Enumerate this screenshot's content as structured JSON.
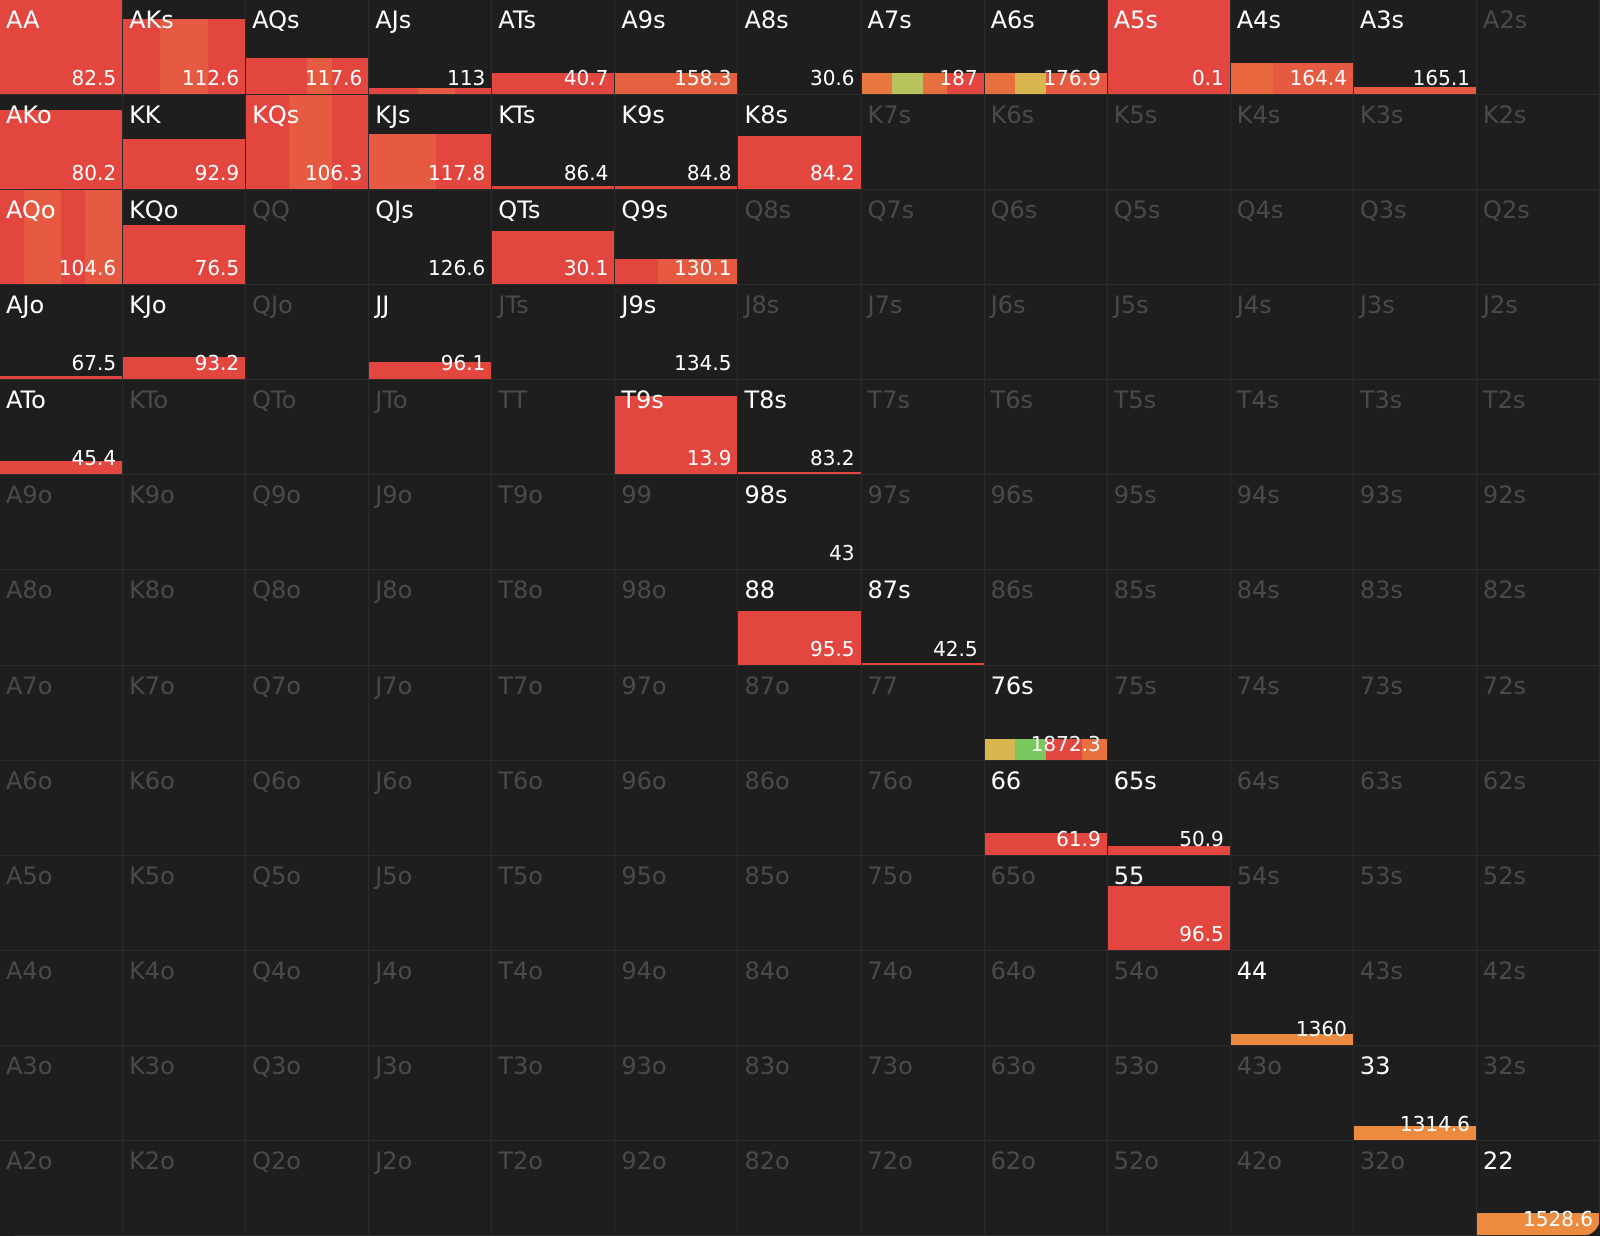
{
  "grid": {
    "rows": [
      [
        {
          "label": "AA",
          "value": 82.5,
          "height": 100,
          "segments": [
            {
              "color": "#e2463f",
              "share": 100
            }
          ]
        },
        {
          "label": "AKs",
          "value": 112.6,
          "height": 80,
          "segments": [
            {
              "color": "#e2463f",
              "share": 30
            },
            {
              "color": "#e55a40",
              "share": 40
            },
            {
              "color": "#e2463f",
              "share": 30
            }
          ]
        },
        {
          "label": "AQs",
          "value": 117.6,
          "height": 38,
          "segments": [
            {
              "color": "#e2463f",
              "share": 50
            },
            {
              "color": "#e55a40",
              "share": 20
            },
            {
              "color": "#e2463f",
              "share": 30
            }
          ]
        },
        {
          "label": "AJs",
          "value": 113,
          "height": 6,
          "segments": [
            {
              "color": "#e2463f",
              "share": 40
            },
            {
              "color": "#e55a40",
              "share": 30
            },
            {
              "color": "#e2463f",
              "share": 30
            }
          ]
        },
        {
          "label": "ATs",
          "value": 40.7,
          "height": 22,
          "segments": [
            {
              "color": "#e2463f",
              "share": 100
            }
          ]
        },
        {
          "label": "A9s",
          "value": 158.3,
          "height": 22,
          "segments": [
            {
              "color": "#e5603f",
              "share": 100
            }
          ]
        },
        {
          "label": "A8s",
          "value": 30.6,
          "height": 0,
          "segments": []
        },
        {
          "label": "A7s",
          "value": 187,
          "height": 22,
          "segments": [
            {
              "color": "#e8783f",
              "share": 25
            },
            {
              "color": "#b9c35e",
              "share": 25
            },
            {
              "color": "#e8703f",
              "share": 20
            },
            {
              "color": "#e2463f",
              "share": 30
            }
          ]
        },
        {
          "label": "A6s",
          "value": 176.9,
          "height": 22,
          "segments": [
            {
              "color": "#e8703f",
              "share": 25
            },
            {
              "color": "#d9b54f",
              "share": 25
            },
            {
              "color": "#e55a40",
              "share": 50
            }
          ]
        },
        {
          "label": "A5s",
          "value": 0.1,
          "height": 100,
          "segments": [
            {
              "color": "#e2463f",
              "share": 100
            }
          ]
        },
        {
          "label": "A4s",
          "value": 164.4,
          "height": 33,
          "segments": [
            {
              "color": "#e8673f",
              "share": 35
            },
            {
              "color": "#e55a40",
              "share": 65
            }
          ]
        },
        {
          "label": "A3s",
          "value": 165.1,
          "height": 8,
          "segments": [
            {
              "color": "#e55a40",
              "share": 100
            }
          ]
        },
        {
          "label": "A2s"
        }
      ],
      [
        {
          "label": "AKo",
          "value": 80.2,
          "height": 84,
          "segments": [
            {
              "color": "#e2463f",
              "share": 100
            }
          ]
        },
        {
          "label": "KK",
          "value": 92.9,
          "height": 53,
          "segments": [
            {
              "color": "#e2463f",
              "share": 100
            }
          ]
        },
        {
          "label": "KQs",
          "value": 106.3,
          "height": 100,
          "segments": [
            {
              "color": "#e2463f",
              "share": 35
            },
            {
              "color": "#e55a40",
              "share": 35
            },
            {
              "color": "#e2463f",
              "share": 30
            }
          ]
        },
        {
          "label": "KJs",
          "value": 117.8,
          "height": 59,
          "segments": [
            {
              "color": "#e55a40",
              "share": 55
            },
            {
              "color": "#e2463f",
              "share": 45
            }
          ]
        },
        {
          "label": "KTs",
          "value": 86.4,
          "height": 3,
          "segments": [
            {
              "color": "#e2463f",
              "share": 100
            }
          ]
        },
        {
          "label": "K9s",
          "value": 84.8,
          "height": 3,
          "segments": [
            {
              "color": "#e2463f",
              "share": 100
            }
          ]
        },
        {
          "label": "K8s",
          "value": 84.2,
          "height": 57,
          "segments": [
            {
              "color": "#e2463f",
              "share": 100
            }
          ]
        },
        {
          "label": "K7s"
        },
        {
          "label": "K6s"
        },
        {
          "label": "K5s"
        },
        {
          "label": "K4s"
        },
        {
          "label": "K3s"
        },
        {
          "label": "K2s"
        }
      ],
      [
        {
          "label": "AQo",
          "value": 104.6,
          "height": 100,
          "segments": [
            {
              "color": "#e2463f",
              "share": 20
            },
            {
              "color": "#e55a40",
              "share": 30
            },
            {
              "color": "#e2463f",
              "share": 20
            },
            {
              "color": "#e55a40",
              "share": 30
            }
          ]
        },
        {
          "label": "KQo",
          "value": 76.5,
          "height": 63,
          "segments": [
            {
              "color": "#e2463f",
              "share": 100
            }
          ]
        },
        {
          "label": "QQ"
        },
        {
          "label": "QJs",
          "value": 126.6,
          "height": 0,
          "segments": []
        },
        {
          "label": "QTs",
          "value": 30.1,
          "height": 57,
          "segments": [
            {
              "color": "#e2463f",
              "share": 100
            }
          ]
        },
        {
          "label": "Q9s",
          "value": 130.1,
          "height": 27,
          "segments": [
            {
              "color": "#e2463f",
              "share": 35
            },
            {
              "color": "#e55a40",
              "share": 65
            }
          ]
        },
        {
          "label": "Q8s"
        },
        {
          "label": "Q7s"
        },
        {
          "label": "Q6s"
        },
        {
          "label": "Q5s"
        },
        {
          "label": "Q4s"
        },
        {
          "label": "Q3s"
        },
        {
          "label": "Q2s"
        }
      ],
      [
        {
          "label": "AJo",
          "value": 67.5,
          "height": 3,
          "segments": [
            {
              "color": "#e2463f",
              "share": 100
            }
          ]
        },
        {
          "label": "KJo",
          "value": 93.2,
          "height": 24,
          "segments": [
            {
              "color": "#e2463f",
              "share": 100
            }
          ]
        },
        {
          "label": "QJo"
        },
        {
          "label": "JJ",
          "value": 96.1,
          "height": 18,
          "segments": [
            {
              "color": "#e2463f",
              "share": 100
            }
          ]
        },
        {
          "label": "JTs"
        },
        {
          "label": "J9s",
          "value": 134.5,
          "height": 0,
          "segments": []
        },
        {
          "label": "J8s"
        },
        {
          "label": "J7s"
        },
        {
          "label": "J6s"
        },
        {
          "label": "J5s"
        },
        {
          "label": "J4s"
        },
        {
          "label": "J3s"
        },
        {
          "label": "J2s"
        }
      ],
      [
        {
          "label": "ATo",
          "value": 45.4,
          "height": 14,
          "segments": [
            {
              "color": "#e2463f",
              "share": 100
            }
          ]
        },
        {
          "label": "KTo"
        },
        {
          "label": "QTo"
        },
        {
          "label": "JTo"
        },
        {
          "label": "TT"
        },
        {
          "label": "T9s",
          "value": 13.9,
          "height": 83,
          "segments": [
            {
              "color": "#e2463f",
              "share": 100
            }
          ]
        },
        {
          "label": "T8s",
          "value": 83.2,
          "height": 2,
          "segments": [
            {
              "color": "#e2463f",
              "share": 100
            }
          ]
        },
        {
          "label": "T7s"
        },
        {
          "label": "T6s"
        },
        {
          "label": "T5s"
        },
        {
          "label": "T4s"
        },
        {
          "label": "T3s"
        },
        {
          "label": "T2s"
        }
      ],
      [
        {
          "label": "A9o"
        },
        {
          "label": "K9o"
        },
        {
          "label": "Q9o"
        },
        {
          "label": "J9o"
        },
        {
          "label": "T9o"
        },
        {
          "label": "99"
        },
        {
          "label": "98s",
          "value": 43,
          "height": 0,
          "segments": []
        },
        {
          "label": "97s"
        },
        {
          "label": "96s"
        },
        {
          "label": "95s"
        },
        {
          "label": "94s"
        },
        {
          "label": "93s"
        },
        {
          "label": "92s"
        }
      ],
      [
        {
          "label": "A8o"
        },
        {
          "label": "K8o"
        },
        {
          "label": "Q8o"
        },
        {
          "label": "J8o"
        },
        {
          "label": "T8o"
        },
        {
          "label": "98o"
        },
        {
          "label": "88",
          "value": 95.5,
          "height": 57,
          "segments": [
            {
              "color": "#e2463f",
              "share": 100
            }
          ]
        },
        {
          "label": "87s",
          "value": 42.5,
          "height": 2,
          "segments": [
            {
              "color": "#e2463f",
              "share": 100
            }
          ]
        },
        {
          "label": "86s"
        },
        {
          "label": "85s"
        },
        {
          "label": "84s"
        },
        {
          "label": "83s"
        },
        {
          "label": "82s"
        }
      ],
      [
        {
          "label": "A7o"
        },
        {
          "label": "K7o"
        },
        {
          "label": "Q7o"
        },
        {
          "label": "J7o"
        },
        {
          "label": "T7o"
        },
        {
          "label": "97o"
        },
        {
          "label": "87o"
        },
        {
          "label": "77"
        },
        {
          "label": "76s",
          "value": 1872.3,
          "height": 22,
          "segments": [
            {
              "color": "#d9b54f",
              "share": 25
            },
            {
              "color": "#79c85f",
              "share": 25
            },
            {
              "color": "#e2463f",
              "share": 30
            },
            {
              "color": "#e8703f",
              "share": 20
            }
          ]
        },
        {
          "label": "75s"
        },
        {
          "label": "74s"
        },
        {
          "label": "73s"
        },
        {
          "label": "72s"
        }
      ],
      [
        {
          "label": "A6o"
        },
        {
          "label": "K6o"
        },
        {
          "label": "Q6o"
        },
        {
          "label": "J6o"
        },
        {
          "label": "T6o"
        },
        {
          "label": "96o"
        },
        {
          "label": "86o"
        },
        {
          "label": "76o"
        },
        {
          "label": "66",
          "value": 61.9,
          "height": 23,
          "segments": [
            {
              "color": "#e2463f",
              "share": 100
            }
          ]
        },
        {
          "label": "65s",
          "value": 50.9,
          "height": 9,
          "segments": [
            {
              "color": "#e2463f",
              "share": 100
            }
          ]
        },
        {
          "label": "64s"
        },
        {
          "label": "63s"
        },
        {
          "label": "62s"
        }
      ],
      [
        {
          "label": "A5o"
        },
        {
          "label": "K5o"
        },
        {
          "label": "Q5o"
        },
        {
          "label": "J5o"
        },
        {
          "label": "T5o"
        },
        {
          "label": "95o"
        },
        {
          "label": "85o"
        },
        {
          "label": "75o"
        },
        {
          "label": "65o"
        },
        {
          "label": "55",
          "value": 96.5,
          "height": 68,
          "segments": [
            {
              "color": "#e2463f",
              "share": 100
            }
          ]
        },
        {
          "label": "54s"
        },
        {
          "label": "53s"
        },
        {
          "label": "52s"
        }
      ],
      [
        {
          "label": "A4o"
        },
        {
          "label": "K4o"
        },
        {
          "label": "Q4o"
        },
        {
          "label": "J4o"
        },
        {
          "label": "T4o"
        },
        {
          "label": "94o"
        },
        {
          "label": "84o"
        },
        {
          "label": "74o"
        },
        {
          "label": "64o"
        },
        {
          "label": "54o"
        },
        {
          "label": "44",
          "value": 1360,
          "height": 11,
          "segments": [
            {
              "color": "#ec8a3f",
              "share": 100
            }
          ]
        },
        {
          "label": "43s"
        },
        {
          "label": "42s"
        }
      ],
      [
        {
          "label": "A3o"
        },
        {
          "label": "K3o"
        },
        {
          "label": "Q3o"
        },
        {
          "label": "J3o"
        },
        {
          "label": "T3o"
        },
        {
          "label": "93o"
        },
        {
          "label": "83o"
        },
        {
          "label": "73o"
        },
        {
          "label": "63o"
        },
        {
          "label": "53o"
        },
        {
          "label": "43o"
        },
        {
          "label": "33",
          "value": 1314.6,
          "height": 15,
          "segments": [
            {
              "color": "#ec8a3f",
              "share": 100
            }
          ]
        },
        {
          "label": "32s"
        }
      ],
      [
        {
          "label": "A2o"
        },
        {
          "label": "K2o"
        },
        {
          "label": "Q2o"
        },
        {
          "label": "J2o"
        },
        {
          "label": "T2o"
        },
        {
          "label": "92o"
        },
        {
          "label": "82o"
        },
        {
          "label": "72o"
        },
        {
          "label": "62o"
        },
        {
          "label": "52o"
        },
        {
          "label": "42o"
        },
        {
          "label": "32o"
        },
        {
          "label": "22",
          "value": 1528.6,
          "height": 23,
          "segments": [
            {
              "color": "#ec8a3f",
              "share": 100
            }
          ]
        }
      ]
    ]
  }
}
